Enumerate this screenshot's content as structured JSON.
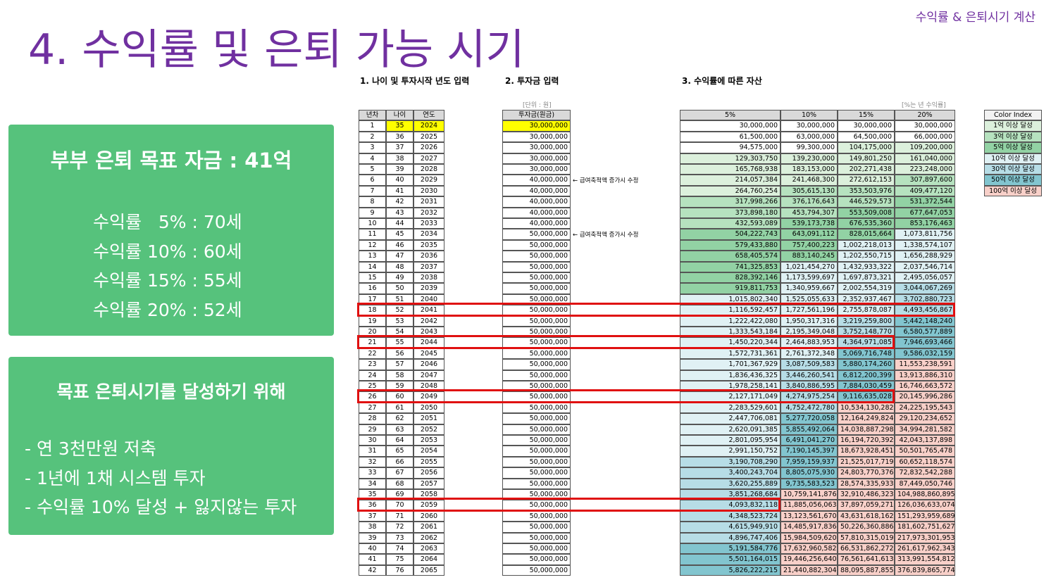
{
  "header": {
    "title": "4. 수익률 및 은퇴 가능 시기",
    "top_right": "수익률 & 은퇴시기 계산"
  },
  "goal_box": {
    "title": "부부 은퇴 목표 자금 : 41억",
    "lines": [
      "수익률   5% : 70세",
      "수익률 10% : 60세",
      "수익률 15% : 55세",
      "수익률 20% : 52세"
    ]
  },
  "plan_box": {
    "title": "목표 은퇴시기를 달성하기 위해",
    "lines": [
      "- 연 3천만원 저축",
      "- 1년에 1채 시스템 투자",
      "- 수익률 10% 달성 + 잃지않는 투자"
    ]
  },
  "sections": [
    "1. 나이 및 투자시작 년도 입력",
    "2. 투자금 입력",
    "3. 수익률에 따른 자산"
  ],
  "unit_note": "[단위 : 원]",
  "rate_note": "[%는 년 수익률]",
  "notes": [
    "← 급여축적액 증가시 수정",
    "← 급여축적액 증가시 수정"
  ],
  "table": {
    "columns": [
      "년차",
      "나이",
      "연도",
      "투자금(원금)",
      "5%",
      "10%",
      "15%",
      "20%"
    ],
    "rows": [
      [
        1,
        35,
        2024,
        "30,000,000",
        "30,000,000",
        "30,000,000",
        "30,000,000",
        "30,000,000"
      ],
      [
        2,
        36,
        2025,
        "30,000,000",
        "61,500,000",
        "63,000,000",
        "64,500,000",
        "66,000,000"
      ],
      [
        3,
        37,
        2026,
        "30,000,000",
        "94,575,000",
        "99,300,000",
        "104,175,000",
        "109,200,000"
      ],
      [
        4,
        38,
        2027,
        "30,000,000",
        "129,303,750",
        "139,230,000",
        "149,801,250",
        "161,040,000"
      ],
      [
        5,
        39,
        2028,
        "30,000,000",
        "165,768,938",
        "183,153,000",
        "202,271,438",
        "223,248,000"
      ],
      [
        6,
        40,
        2029,
        "40,000,000",
        "214,057,384",
        "241,468,300",
        "272,612,153",
        "307,897,600"
      ],
      [
        7,
        41,
        2030,
        "40,000,000",
        "264,760,254",
        "305,615,130",
        "353,503,976",
        "409,477,120"
      ],
      [
        8,
        42,
        2031,
        "40,000,000",
        "317,998,266",
        "376,176,643",
        "446,529,573",
        "531,372,544"
      ],
      [
        9,
        43,
        2032,
        "40,000,000",
        "373,898,180",
        "453,794,307",
        "553,509,008",
        "677,647,053"
      ],
      [
        10,
        44,
        2033,
        "40,000,000",
        "432,593,089",
        "539,173,738",
        "676,535,360",
        "853,176,463"
      ],
      [
        11,
        45,
        2034,
        "50,000,000",
        "504,222,743",
        "643,091,112",
        "828,015,664",
        "1,073,811,756"
      ],
      [
        12,
        46,
        2035,
        "50,000,000",
        "579,433,880",
        "757,400,223",
        "1,002,218,013",
        "1,338,574,107"
      ],
      [
        13,
        47,
        2036,
        "50,000,000",
        "658,405,574",
        "883,140,245",
        "1,202,550,715",
        "1,656,288,929"
      ],
      [
        14,
        48,
        2037,
        "50,000,000",
        "741,325,853",
        "1,021,454,270",
        "1,432,933,322",
        "2,037,546,714"
      ],
      [
        15,
        49,
        2038,
        "50,000,000",
        "828,392,146",
        "1,173,599,697",
        "1,697,873,321",
        "2,495,056,057"
      ],
      [
        16,
        50,
        2039,
        "50,000,000",
        "919,811,753",
        "1,340,959,667",
        "2,002,554,319",
        "3,044,067,269"
      ],
      [
        17,
        51,
        2040,
        "50,000,000",
        "1,015,802,340",
        "1,525,055,633",
        "2,352,937,467",
        "3,702,880,723"
      ],
      [
        18,
        52,
        2041,
        "50,000,000",
        "1,116,592,457",
        "1,727,561,196",
        "2,755,878,087",
        "4,493,456,867"
      ],
      [
        19,
        53,
        2042,
        "50,000,000",
        "1,222,422,080",
        "1,950,317,316",
        "3,219,259,800",
        "5,442,148,240"
      ],
      [
        20,
        54,
        2043,
        "50,000,000",
        "1,333,543,184",
        "2,195,349,048",
        "3,752,148,770",
        "6,580,577,889"
      ],
      [
        21,
        55,
        2044,
        "50,000,000",
        "1,450,220,344",
        "2,464,883,953",
        "4,364,971,085",
        "7,946,693,466"
      ],
      [
        22,
        56,
        2045,
        "50,000,000",
        "1,572,731,361",
        "2,761,372,348",
        "5,069,716,748",
        "9,586,032,159"
      ],
      [
        23,
        57,
        2046,
        "50,000,000",
        "1,701,367,929",
        "3,087,509,583",
        "5,880,174,260",
        "11,553,238,591"
      ],
      [
        24,
        58,
        2047,
        "50,000,000",
        "1,836,436,325",
        "3,446,260,541",
        "6,812,200,399",
        "13,913,886,310"
      ],
      [
        25,
        59,
        2048,
        "50,000,000",
        "1,978,258,141",
        "3,840,886,595",
        "7,884,030,459",
        "16,746,663,572"
      ],
      [
        26,
        60,
        2049,
        "50,000,000",
        "2,127,171,049",
        "4,274,975,254",
        "9,116,635,028",
        "20,145,996,286"
      ],
      [
        27,
        61,
        2050,
        "50,000,000",
        "2,283,529,601",
        "4,752,472,780",
        "10,534,130,282",
        "24,225,195,543"
      ],
      [
        28,
        62,
        2051,
        "50,000,000",
        "2,447,706,081",
        "5,277,720,058",
        "12,164,249,824",
        "29,120,234,652"
      ],
      [
        29,
        63,
        2052,
        "50,000,000",
        "2,620,091,385",
        "5,855,492,064",
        "14,038,887,298",
        "34,994,281,582"
      ],
      [
        30,
        64,
        2053,
        "50,000,000",
        "2,801,095,954",
        "6,491,041,270",
        "16,194,720,392",
        "42,043,137,898"
      ],
      [
        31,
        65,
        2054,
        "50,000,000",
        "2,991,150,752",
        "7,190,145,397",
        "18,673,928,451",
        "50,501,765,478"
      ],
      [
        32,
        66,
        2055,
        "50,000,000",
        "3,190,708,290",
        "7,959,159,937",
        "21,525,017,719",
        "60,652,118,574"
      ],
      [
        33,
        67,
        2056,
        "50,000,000",
        "3,400,243,704",
        "8,805,075,930",
        "24,803,770,376",
        "72,832,542,288"
      ],
      [
        34,
        68,
        2057,
        "50,000,000",
        "3,620,255,889",
        "9,735,583,523",
        "28,574,335,933",
        "87,449,050,746"
      ],
      [
        35,
        69,
        2058,
        "50,000,000",
        "3,851,268,684",
        "10,759,141,876",
        "32,910,486,323",
        "104,988,860,895"
      ],
      [
        36,
        70,
        2059,
        "50,000,000",
        "4,093,832,118",
        "11,885,056,063",
        "37,897,059,271",
        "126,036,633,074"
      ],
      [
        37,
        71,
        2060,
        "50,000,000",
        "4,348,523,724",
        "13,123,561,670",
        "43,631,618,162",
        "151,293,959,689"
      ],
      [
        38,
        72,
        2061,
        "50,000,000",
        "4,615,949,910",
        "14,485,917,836",
        "50,226,360,886",
        "181,602,751,627"
      ],
      [
        39,
        73,
        2062,
        "50,000,000",
        "4,896,747,406",
        "15,984,509,620",
        "57,810,315,019",
        "217,973,301,953"
      ],
      [
        40,
        74,
        2063,
        "50,000,000",
        "5,191,584,776",
        "17,632,960,582",
        "66,531,862,272",
        "261,617,962,343"
      ],
      [
        41,
        75,
        2064,
        "50,000,000",
        "5,501,164,015",
        "19,446,256,640",
        "76,561,641,613",
        "313,991,554,812"
      ],
      [
        42,
        76,
        2065,
        "50,000,000",
        "5,826,222,215",
        "21,440,882,304",
        "88,095,887,855",
        "376,839,865,774"
      ]
    ]
  },
  "color_index": {
    "title": "Color Index",
    "items": [
      {
        "label": "1억 이상 달성",
        "color": "#dcf0dc"
      },
      {
        "label": "3억 이상 달성",
        "color": "#b6e2bf"
      },
      {
        "label": "5억 이상 달성",
        "color": "#92d2a4"
      },
      {
        "label": "10억 이상 달성",
        "color": "#e0f1f4"
      },
      {
        "label": "30억 이상 달성",
        "color": "#b7dde6"
      },
      {
        "label": "50억 이상 달성",
        "color": "#82c5cf"
      },
      {
        "label": "100억 이상 달성",
        "color": "#f8d0c9"
      }
    ]
  }
}
